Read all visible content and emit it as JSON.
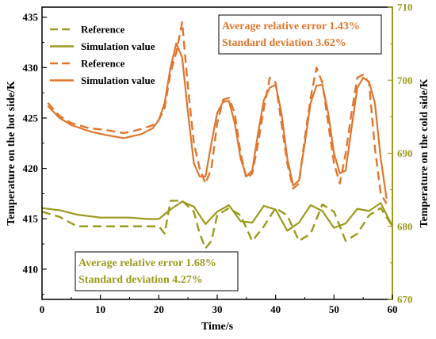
{
  "colors": {
    "left_axis": "#000000",
    "right_axis": "#9b9a1e",
    "olive_series": "#9b9a1e",
    "orange_series": "#e0762c",
    "background": "#ffffff"
  },
  "chart_data": {
    "type": "line",
    "grid": false,
    "legend_position": "top-left",
    "xlabel": "Time/s",
    "ylabel_left": "Temperature on the hot side/K",
    "ylabel_right": "Temperature on the cold side/K",
    "xlim": [
      0,
      60
    ],
    "ylim_left": [
      407,
      436
    ],
    "ylim_right": [
      670,
      710
    ],
    "x_ticks": [
      0,
      10,
      20,
      30,
      40,
      50,
      60
    ],
    "y_ticks_left": [
      410,
      415,
      420,
      425,
      430,
      435
    ],
    "y_ticks_right": [
      670,
      680,
      690,
      700,
      710
    ],
    "series": [
      {
        "name": "Reference",
        "axis": "right",
        "style": "dashed",
        "color": "#9b9a1e",
        "x": [
          0,
          3,
          6,
          10,
          15,
          20,
          21,
          22,
          24,
          26,
          27,
          28,
          29,
          30,
          32,
          34,
          36,
          38,
          40,
          42,
          44,
          46,
          48,
          50,
          52,
          54,
          56,
          58,
          60
        ],
        "y": [
          682,
          681.3,
          680,
          680,
          680,
          680,
          679,
          683.5,
          683.5,
          682,
          679,
          677,
          678,
          681.5,
          682.5,
          681.5,
          678,
          680,
          682.5,
          681.5,
          678,
          679,
          683,
          682,
          678,
          679,
          681.5,
          682.5,
          680
        ]
      },
      {
        "name": "Simulation value",
        "axis": "right",
        "style": "solid",
        "color": "#9b9a1e",
        "x": [
          0,
          3,
          6,
          10,
          15,
          18,
          20,
          22,
          24,
          26,
          28,
          30,
          32,
          34,
          36,
          38,
          40,
          42,
          44,
          46,
          48,
          50,
          52,
          54,
          56,
          58,
          60
        ],
        "y": [
          682.5,
          682.2,
          681.6,
          681.2,
          681.2,
          681,
          681,
          682.3,
          683.4,
          682.7,
          680.3,
          682,
          682.9,
          680.7,
          680.5,
          682.8,
          682.3,
          679.4,
          680.5,
          682.9,
          682.1,
          679.8,
          680.4,
          682.4,
          682.1,
          683.2,
          680
        ]
      },
      {
        "name": "Reference",
        "axis": "left",
        "style": "dashed",
        "color": "#e0762c",
        "x": [
          1,
          3,
          5,
          8,
          11,
          14,
          17,
          19,
          20,
          21,
          22,
          23,
          24,
          25,
          26,
          27,
          28,
          29,
          30,
          31,
          32,
          33,
          34,
          35,
          36,
          37,
          38,
          39,
          40,
          41,
          42,
          43,
          44,
          45,
          46,
          47,
          48,
          49,
          50,
          51,
          52,
          53,
          54,
          55,
          56,
          57,
          58,
          59
        ],
        "y": [
          426.5,
          425.2,
          424.5,
          424,
          423.8,
          423.5,
          423.9,
          424.3,
          424.8,
          426,
          429.5,
          431.5,
          434.5,
          428,
          422.5,
          420,
          418.5,
          420,
          424.5,
          426.8,
          427,
          425.5,
          421.5,
          419,
          419.5,
          422.5,
          426,
          429,
          428.5,
          424.5,
          420.5,
          418,
          418.5,
          423,
          427,
          430,
          428.5,
          424.5,
          420.5,
          418.5,
          421.5,
          425.5,
          429,
          429.3,
          428.5,
          422,
          417.5,
          416.5
        ]
      },
      {
        "name": "Simulation value",
        "axis": "left",
        "style": "solid",
        "color": "#e0762c",
        "x": [
          1,
          3,
          5,
          8,
          11,
          14,
          17,
          19,
          20,
          21,
          22,
          23,
          24,
          25,
          26,
          27,
          28,
          29,
          30,
          31,
          32,
          33,
          34,
          35,
          36,
          37,
          38,
          39,
          40,
          41,
          42,
          43,
          44,
          45,
          46,
          47,
          48,
          49,
          50,
          51,
          52,
          53,
          54,
          55,
          56,
          57,
          58,
          59
        ],
        "y": [
          426.2,
          425,
          424.3,
          423.7,
          423.3,
          423,
          423.4,
          424,
          424.8,
          426.5,
          430,
          432.4,
          431,
          425.5,
          420.5,
          419.2,
          419.2,
          422.5,
          425.5,
          426.6,
          426.7,
          424.5,
          421,
          419.2,
          419.8,
          423.5,
          426.8,
          428,
          428.3,
          425.5,
          421,
          418.3,
          418.8,
          422.5,
          426.5,
          428.2,
          428.3,
          425.5,
          421.5,
          419.5,
          419.8,
          424,
          428,
          429,
          428.6,
          426.5,
          421,
          417
        ]
      }
    ],
    "legend": [
      {
        "label": "Reference",
        "color": "#9b9a1e",
        "style": "dashed"
      },
      {
        "label": "Simulation value",
        "color": "#9b9a1e",
        "style": "solid"
      },
      {
        "label": "Reference",
        "color": "#e0762c",
        "style": "dashed"
      },
      {
        "label": "Simulation value",
        "color": "#e0762c",
        "style": "solid"
      }
    ],
    "annotations": [
      {
        "lines": [
          "Average relative error 1.43%",
          "Standard deviation 3.62%"
        ],
        "color": "#e0762c",
        "position": "top-right"
      },
      {
        "lines": [
          "Average relative error 1.68%",
          "Standard deviation 4.27%"
        ],
        "color": "#9b9a1e",
        "position": "bottom-center"
      }
    ]
  }
}
